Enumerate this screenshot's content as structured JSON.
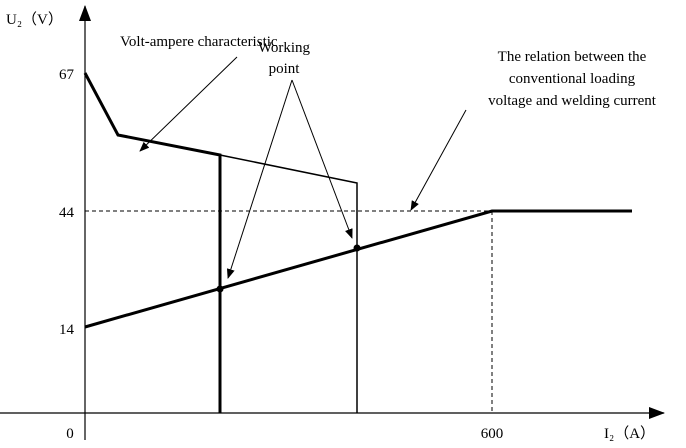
{
  "axes": {
    "y_label": "U₂（V）",
    "x_label": "I₂（A）",
    "y_ticks": [
      "67",
      "44",
      "14"
    ],
    "x_ticks": [
      "0",
      "600"
    ]
  },
  "annotations": {
    "characteristic": "Volt-ampere characteristic",
    "working_point": [
      "Working",
      "point"
    ],
    "relation": [
      "The relation between the",
      "conventional loading",
      "voltage and welding current"
    ]
  }
}
